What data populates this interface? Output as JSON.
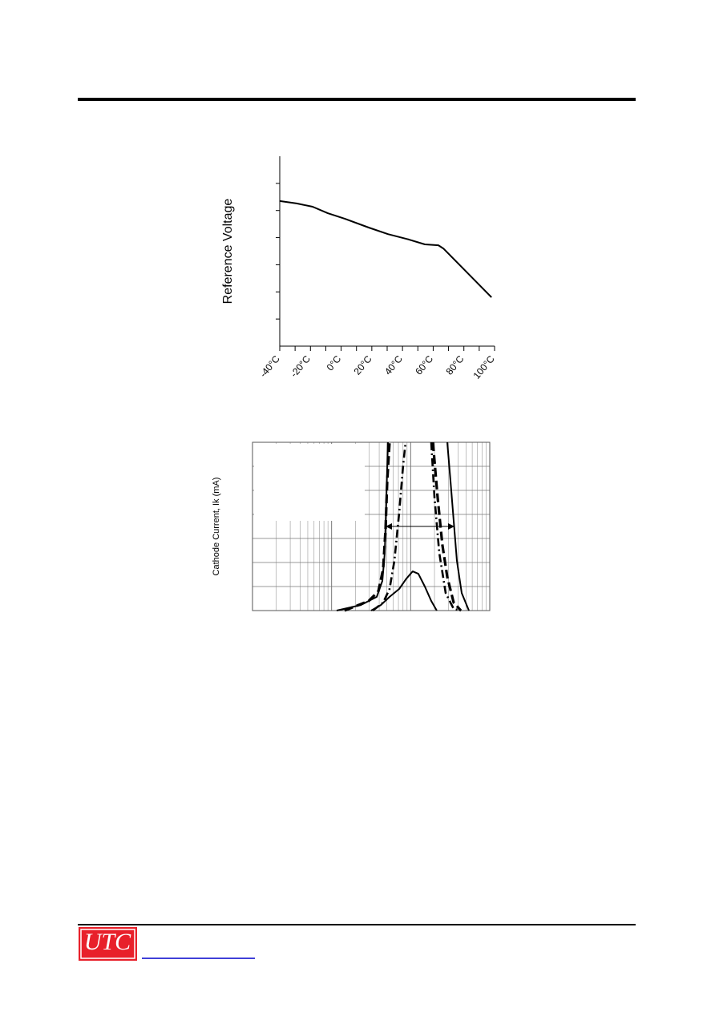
{
  "logo": "UTC",
  "chart_data": [
    {
      "type": "line",
      "ylabel": "Reference Voltage",
      "xlim": [
        -40,
        100
      ],
      "xticks": [
        {
          "value": -40,
          "label": "-40°C"
        },
        {
          "value": -20,
          "label": "-20°C"
        },
        {
          "value": 0,
          "label": "0°C"
        },
        {
          "value": 20,
          "label": "20°C"
        },
        {
          "value": 40,
          "label": "40°C"
        },
        {
          "value": 60,
          "label": "60°C"
        },
        {
          "value": 80,
          "label": "80°C"
        },
        {
          "value": 100,
          "label": "100°C"
        }
      ],
      "xminorticks": [
        -30,
        -10,
        10,
        30,
        50,
        70,
        90
      ],
      "ylim": [
        0,
        7
      ],
      "yticks": [
        1,
        2,
        3,
        4,
        5,
        6
      ],
      "series": [
        {
          "color": "#000000",
          "x": [
            -40,
            -29.0,
            -18.6,
            -8.7,
            2.3,
            18.0,
            30.5,
            44.1,
            54.6,
            63.4,
            66.6,
            98.0
          ],
          "values": [
            5.35,
            5.26,
            5.14,
            4.9,
            4.7,
            4.37,
            4.13,
            3.93,
            3.75,
            3.72,
            3.6,
            1.8
          ]
        }
      ]
    },
    {
      "type": "line",
      "ylabel": "Cathode Current, Ik (mA)",
      "xscale": "log",
      "grid": true,
      "xlim": [
        1,
        1000
      ],
      "xticks": [
        1,
        10,
        100,
        1000
      ],
      "xminorticks": [
        2,
        3,
        4,
        5,
        6,
        7,
        8,
        9,
        20,
        30,
        40,
        50,
        60,
        70,
        80,
        90,
        200,
        300,
        400,
        500,
        600,
        700,
        800,
        900
      ],
      "ylim": [
        0,
        7
      ],
      "yticks": [
        1,
        2,
        3,
        4,
        5,
        6
      ],
      "series": [
        {
          "color": "#000000",
          "style": "solid",
          "width": 2,
          "x": [
            11.6,
            23.4,
            37.2,
            43.8,
            47.0,
            49.3,
            51.6,
            290,
            290,
            319,
            350,
            384,
            442,
            545
          ],
          "values": [
            0,
            0.23,
            0.57,
            1.23,
            2.4,
            4.73,
            7,
            null,
            7,
            5.4,
            3.73,
            2.07,
            0.73,
            0
          ]
        },
        {
          "color": "#000000",
          "style": "dashed",
          "width": 3.2,
          "x": [
            14.6,
            29.5,
            39.0,
            44.9,
            48.1,
            50.5,
            54.1,
            191,
            191,
            219,
            252,
            290,
            350,
            432
          ],
          "values": [
            0,
            0.4,
            0.8,
            1.73,
            3.4,
            5.4,
            7,
            null,
            7,
            4.73,
            2.73,
            1.4,
            0.33,
            0
          ]
        },
        {
          "color": "#000000",
          "style": "dashdot",
          "width": 2.6,
          "x": [
            33.1,
            44.9,
            54.1,
            62.2,
            71.6,
            80.4,
            86.3,
            182,
            182,
            200,
            230,
            277,
            350,
            432
          ],
          "values": [
            0,
            0.33,
            0.9,
            2.07,
            4.07,
            6.07,
            7,
            null,
            7,
            4.73,
            2.4,
            0.73,
            0.07,
            0
          ]
        },
        {
          "color": "#000000",
          "style": "solid",
          "width": 2,
          "x": [
            31.6,
            41.9,
            54.1,
            71.6,
            88.3,
            106,
            125,
            151,
            182,
            214
          ],
          "values": [
            0,
            0.23,
            0.57,
            0.9,
            1.33,
            1.63,
            1.53,
            1,
            0.4,
            0
          ]
        }
      ]
    }
  ]
}
